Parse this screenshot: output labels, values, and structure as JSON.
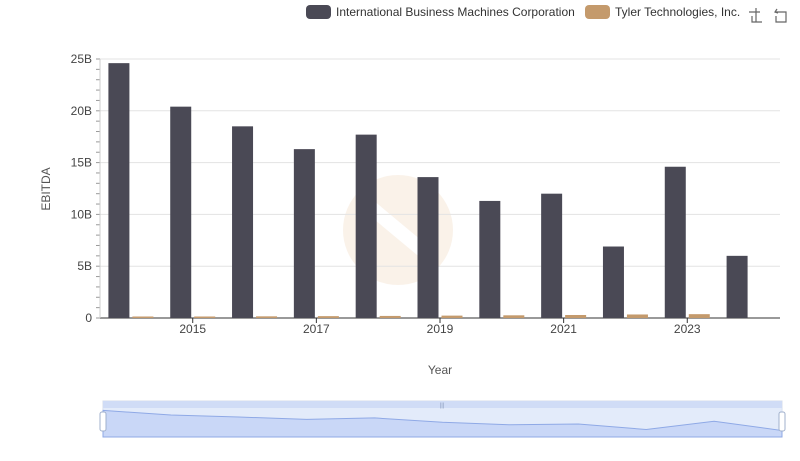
{
  "chart_data": {
    "type": "bar",
    "xlabel": "Year",
    "ylabel": "EBITDA",
    "x_tick_labels": [
      "2015",
      "2017",
      "2019",
      "2021",
      "2023"
    ],
    "y_tick_labels": [
      "0",
      "5B",
      "10B",
      "15B",
      "20B",
      "25B"
    ],
    "ylim": [
      0,
      25000000000
    ],
    "categories": [
      "2014",
      "2015",
      "2016",
      "2017",
      "2018",
      "2019",
      "2020",
      "2021",
      "2022",
      "2023",
      "2024"
    ],
    "series": [
      {
        "name": "International Business Machines Corporation",
        "color": "#4a4955",
        "values": [
          24600000000,
          20400000000,
          18500000000,
          16300000000,
          17700000000,
          13600000000,
          11300000000,
          12000000000,
          6900000000,
          14600000000,
          6000000000
        ]
      },
      {
        "name": "Tyler Technologies, Inc.",
        "color": "#c49a6c",
        "values": [
          100000000,
          130000000,
          160000000,
          180000000,
          200000000,
          230000000,
          260000000,
          290000000,
          340000000,
          370000000,
          null
        ]
      }
    ],
    "grid": true,
    "legend_position": "top-right"
  },
  "toolbar": {
    "icons": [
      "zoom-icon",
      "restore-icon"
    ]
  }
}
